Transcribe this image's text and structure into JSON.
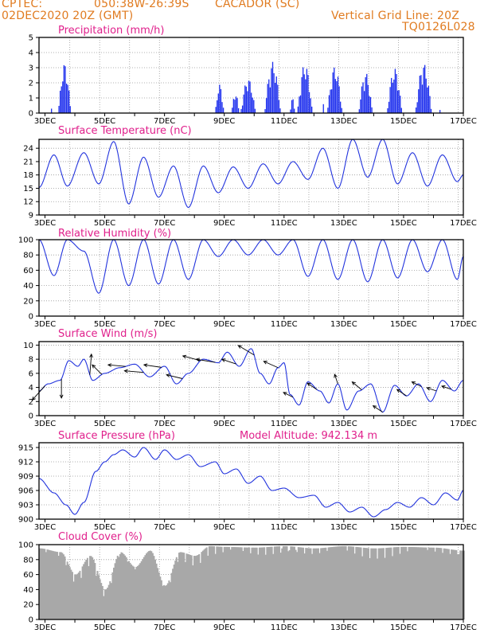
{
  "header": {
    "source": "CPTEC:",
    "coords": "050:38W-26:39S",
    "station": "CACADOR (SC)",
    "init_time": "02DEC2020 20Z (GMT)",
    "grid_note": "Vertical Grid Line: 20Z",
    "run_id": "TQ0126L028"
  },
  "day_labels": [
    "3DEC",
    "5DEC",
    "7DEC",
    "9DEC",
    "11DEC",
    "13DEC",
    "15DEC",
    "17DEC"
  ],
  "colors": {
    "line": "#2233dd",
    "bar": "#2233ee",
    "cloud": "#a8a8a8",
    "title": "#e0208c",
    "header": "#e07b20",
    "grid": "#999999"
  },
  "chart_data": [
    {
      "id": "precip",
      "type": "bar",
      "title": "Precipitation (mm/h)",
      "xlim": [
        2.8,
        17.0
      ],
      "ylim": [
        0,
        5
      ],
      "yticks": [
        0,
        1,
        2,
        3,
        4,
        5
      ],
      "x_unit": "day of Dec 2020",
      "rain_events": [
        {
          "start": 3.2,
          "end": 3.25,
          "peak": 0.4
        },
        {
          "start": 3.45,
          "end": 3.85,
          "peak": 3.3
        },
        {
          "start": 8.7,
          "end": 9.0,
          "peak": 1.9
        },
        {
          "start": 9.25,
          "end": 9.5,
          "peak": 1.4
        },
        {
          "start": 9.55,
          "end": 10.05,
          "peak": 2.3
        },
        {
          "start": 10.35,
          "end": 10.9,
          "peak": 3.4
        },
        {
          "start": 11.2,
          "end": 11.35,
          "peak": 1.0
        },
        {
          "start": 11.45,
          "end": 11.95,
          "peak": 3.3
        },
        {
          "start": 12.3,
          "end": 12.35,
          "peak": 0.6
        },
        {
          "start": 12.45,
          "end": 12.95,
          "peak": 3.1
        },
        {
          "start": 13.5,
          "end": 13.95,
          "peak": 2.7
        },
        {
          "start": 14.45,
          "end": 14.95,
          "peak": 3.0
        },
        {
          "start": 15.4,
          "end": 15.95,
          "peak": 3.3
        },
        {
          "start": 16.2,
          "end": 16.25,
          "peak": 0.3
        }
      ]
    },
    {
      "id": "temp",
      "type": "line",
      "title": "Surface Temperature (nC)",
      "xlim": [
        2.8,
        17.0
      ],
      "ylim": [
        9,
        26
      ],
      "yticks": [
        9,
        12,
        15,
        18,
        21,
        24
      ],
      "x": [
        2.8,
        3.3,
        3.75,
        4.3,
        4.8,
        5.3,
        5.8,
        6.3,
        6.8,
        7.3,
        7.8,
        8.3,
        8.8,
        9.3,
        9.8,
        10.3,
        10.8,
        11.3,
        11.8,
        12.3,
        12.8,
        13.3,
        13.8,
        14.3,
        14.8,
        15.3,
        15.8,
        16.3,
        16.8,
        17.0
      ],
      "y": [
        15.2,
        22.5,
        15.5,
        23.0,
        16.0,
        25.5,
        11.5,
        22.0,
        13.0,
        20.0,
        10.7,
        20.0,
        14.0,
        19.8,
        15.0,
        20.5,
        16.0,
        21.0,
        17.0,
        24.0,
        15.0,
        26.0,
        17.5,
        26.0,
        16.0,
        23.0,
        15.5,
        22.5,
        16.5,
        18.0
      ]
    },
    {
      "id": "rh",
      "type": "line",
      "title": "Relative Humidity (%)",
      "xlim": [
        2.8,
        17.0
      ],
      "ylim": [
        0,
        100
      ],
      "yticks": [
        0,
        20,
        40,
        60,
        80,
        100
      ],
      "x": [
        2.8,
        3.3,
        3.75,
        4.3,
        4.8,
        5.3,
        5.8,
        6.3,
        6.8,
        7.3,
        7.8,
        8.3,
        8.8,
        9.3,
        9.8,
        10.3,
        10.8,
        11.3,
        11.8,
        12.3,
        12.8,
        13.3,
        13.8,
        14.3,
        14.8,
        15.3,
        15.8,
        16.3,
        16.8,
        17.0
      ],
      "y": [
        100,
        53,
        100,
        85,
        30,
        100,
        40,
        100,
        42,
        100,
        48,
        100,
        78,
        100,
        80,
        100,
        80,
        100,
        52,
        100,
        48,
        100,
        45,
        100,
        50,
        100,
        58,
        100,
        48,
        78
      ]
    },
    {
      "id": "wind",
      "type": "line",
      "title": "Surface Wind (m/s)",
      "xlim": [
        2.8,
        17.0
      ],
      "ylim": [
        0,
        10.5
      ],
      "yticks": [
        0,
        2,
        4,
        6,
        8,
        10
      ],
      "x": [
        2.8,
        3.1,
        3.5,
        3.8,
        4.1,
        4.3,
        4.6,
        5.0,
        5.5,
        6.0,
        6.5,
        7.0,
        7.4,
        7.8,
        8.3,
        8.8,
        9.1,
        9.5,
        9.9,
        10.2,
        10.5,
        10.8,
        11.0,
        11.2,
        11.5,
        11.8,
        12.2,
        12.5,
        12.8,
        13.1,
        13.5,
        13.9,
        14.3,
        14.7,
        15.1,
        15.5,
        15.9,
        16.3,
        16.7,
        17.0
      ],
      "y": [
        3.5,
        4.5,
        5.0,
        7.8,
        7.0,
        8.0,
        5.0,
        6.0,
        6.8,
        7.3,
        5.5,
        7.0,
        4.5,
        6.0,
        8.0,
        7.5,
        9.0,
        7.0,
        9.5,
        6.0,
        4.5,
        6.8,
        7.5,
        3.0,
        1.5,
        4.8,
        3.5,
        1.8,
        4.5,
        0.8,
        3.5,
        4.5,
        0.5,
        4.3,
        2.8,
        4.5,
        2.0,
        5.0,
        3.5,
        5.0
      ],
      "arrows": [
        {
          "x": 3.0,
          "u": -0.4,
          "v": -0.45
        },
        {
          "x": 3.55,
          "u": 0.0,
          "v": -0.6
        },
        {
          "x": 4.5,
          "u": 0.05,
          "v": 0.65
        },
        {
          "x": 4.9,
          "u": -0.3,
          "v": 0.3
        },
        {
          "x": 5.7,
          "u": -0.55,
          "v": 0.05
        },
        {
          "x": 6.3,
          "u": -0.6,
          "v": 0.05
        },
        {
          "x": 6.9,
          "u": -0.55,
          "v": 0.08
        },
        {
          "x": 7.6,
          "u": -0.5,
          "v": 0.12
        },
        {
          "x": 8.2,
          "u": -0.55,
          "v": 0.15
        },
        {
          "x": 8.7,
          "u": -0.6,
          "v": 0.1
        },
        {
          "x": 9.4,
          "u": -0.45,
          "v": 0.15
        },
        {
          "x": 10.0,
          "u": -0.5,
          "v": 0.3
        },
        {
          "x": 10.8,
          "u": -0.45,
          "v": 0.2
        },
        {
          "x": 11.3,
          "u": -0.3,
          "v": 0.15
        },
        {
          "x": 12.1,
          "u": -0.3,
          "v": 0.2
        },
        {
          "x": 12.8,
          "u": -0.1,
          "v": 0.3
        },
        {
          "x": 13.6,
          "u": -0.3,
          "v": 0.25
        },
        {
          "x": 14.3,
          "u": -0.3,
          "v": 0.2
        },
        {
          "x": 15.1,
          "u": -0.3,
          "v": 0.2
        },
        {
          "x": 15.6,
          "u": -0.3,
          "v": 0.15
        },
        {
          "x": 16.1,
          "u": -0.3,
          "v": 0.1
        },
        {
          "x": 16.6,
          "u": -0.3,
          "v": 0.1
        }
      ]
    },
    {
      "id": "press",
      "type": "line",
      "title": "Surface Pressure (hPa)",
      "subtitle": "Model Altitude: 942.134 m",
      "xlim": [
        2.8,
        17.0
      ],
      "ylim": [
        900,
        916
      ],
      "yticks": [
        900,
        903,
        906,
        909,
        912,
        915
      ],
      "x": [
        2.8,
        3.3,
        3.7,
        4.0,
        4.3,
        4.7,
        5.0,
        5.3,
        5.6,
        6.0,
        6.3,
        6.7,
        7.0,
        7.4,
        7.8,
        8.2,
        8.7,
        9.0,
        9.4,
        9.8,
        10.2,
        10.6,
        11.0,
        11.5,
        12.0,
        12.4,
        12.8,
        13.2,
        13.6,
        14.0,
        14.4,
        14.8,
        15.2,
        15.6,
        16.0,
        16.4,
        16.8,
        17.0
      ],
      "y": [
        908.5,
        905.5,
        903.0,
        901.0,
        903.5,
        910.0,
        912.0,
        913.5,
        914.5,
        913.0,
        915.0,
        912.5,
        914.5,
        912.5,
        913.5,
        911.0,
        912.0,
        909.5,
        910.5,
        907.5,
        909.0,
        906.0,
        906.5,
        904.5,
        905.0,
        902.5,
        903.5,
        901.5,
        902.5,
        900.5,
        902.0,
        903.5,
        902.5,
        904.5,
        903.0,
        905.5,
        904.0,
        906.0
      ]
    },
    {
      "id": "cloud",
      "type": "bar",
      "title": "Cloud Cover (%)",
      "xlim": [
        2.8,
        17.0
      ],
      "ylim": [
        0,
        100
      ],
      "yticks": [
        0,
        20,
        40,
        60,
        80,
        100
      ],
      "x": [
        2.8,
        3.5,
        4.0,
        4.5,
        5.0,
        5.5,
        6.0,
        6.5,
        7.0,
        7.5,
        8.0,
        8.5,
        9.0,
        10.0,
        11.0,
        12.0,
        13.0,
        14.0,
        15.0,
        16.0,
        17.0
      ],
      "y": [
        95,
        90,
        60,
        85,
        40,
        90,
        70,
        92,
        45,
        90,
        85,
        98,
        97,
        96,
        98,
        95,
        98,
        95,
        97,
        96,
        92
      ]
    }
  ]
}
